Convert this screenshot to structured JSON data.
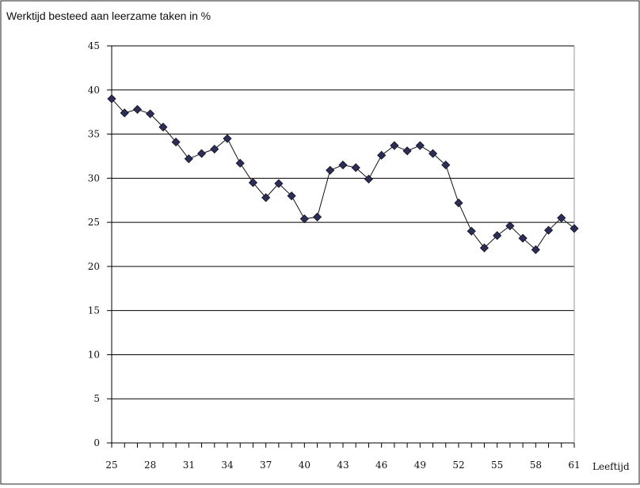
{
  "chart_data": {
    "type": "line",
    "title": "Werktijd besteed aan leerzame taken in %",
    "xlabel": "Leeftijd",
    "ylabel": "",
    "xlim": [
      25,
      61
    ],
    "ylim": [
      0,
      45
    ],
    "x_ticks": [
      25,
      28,
      31,
      34,
      37,
      40,
      43,
      46,
      49,
      52,
      55,
      58,
      61
    ],
    "y_ticks": [
      0,
      5,
      10,
      15,
      20,
      25,
      30,
      35,
      40,
      45
    ],
    "grid": true,
    "legend": "none",
    "colors": {
      "series": "#2b2d5f",
      "grid": "#000000",
      "axis": "#000000"
    },
    "series": [
      {
        "values": [
          {
            "x": 25,
            "y": 39.0
          },
          {
            "x": 26,
            "y": 37.4
          },
          {
            "x": 27,
            "y": 37.8
          },
          {
            "x": 28,
            "y": 37.3
          },
          {
            "x": 29,
            "y": 35.8
          },
          {
            "x": 30,
            "y": 34.1
          },
          {
            "x": 31,
            "y": 32.2
          },
          {
            "x": 32,
            "y": 32.8
          },
          {
            "x": 33,
            "y": 33.3
          },
          {
            "x": 34,
            "y": 34.5
          },
          {
            "x": 35,
            "y": 31.7
          },
          {
            "x": 36,
            "y": 29.5
          },
          {
            "x": 37,
            "y": 27.8
          },
          {
            "x": 38,
            "y": 29.4
          },
          {
            "x": 39,
            "y": 28.0
          },
          {
            "x": 40,
            "y": 25.4
          },
          {
            "x": 41,
            "y": 25.6
          },
          {
            "x": 42,
            "y": 30.9
          },
          {
            "x": 43,
            "y": 31.5
          },
          {
            "x": 44,
            "y": 31.2
          },
          {
            "x": 45,
            "y": 29.9
          },
          {
            "x": 46,
            "y": 32.6
          },
          {
            "x": 47,
            "y": 33.7
          },
          {
            "x": 48,
            "y": 33.1
          },
          {
            "x": 49,
            "y": 33.7
          },
          {
            "x": 50,
            "y": 32.8
          },
          {
            "x": 51,
            "y": 31.5
          },
          {
            "x": 52,
            "y": 27.2
          },
          {
            "x": 53,
            "y": 24.0
          },
          {
            "x": 54,
            "y": 22.1
          },
          {
            "x": 55,
            "y": 23.5
          },
          {
            "x": 56,
            "y": 24.6
          },
          {
            "x": 57,
            "y": 23.2
          },
          {
            "x": 58,
            "y": 21.9
          },
          {
            "x": 59,
            "y": 24.1
          },
          {
            "x": 60,
            "y": 25.5
          },
          {
            "x": 61,
            "y": 24.3
          }
        ]
      }
    ]
  }
}
